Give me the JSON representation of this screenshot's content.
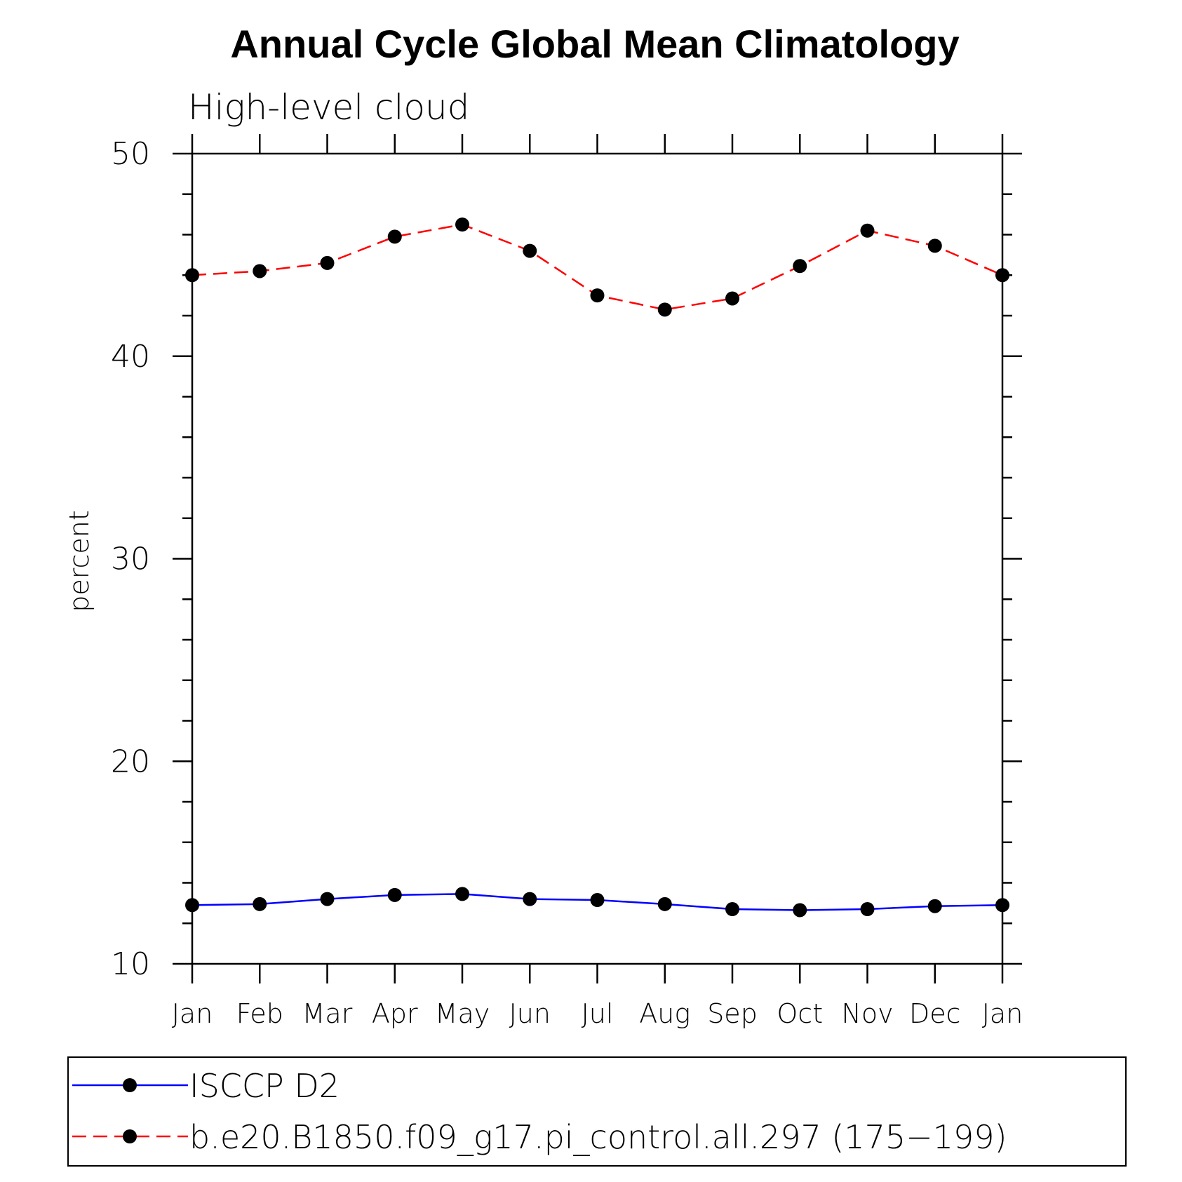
{
  "chart_data": {
    "type": "line",
    "title": "Annual Cycle Global Mean Climatology",
    "subtitle": "High-level cloud",
    "xlabel": "",
    "ylabel": "percent",
    "ylim": [
      10,
      50
    ],
    "yticks": [
      "10",
      "20",
      "30",
      "40",
      "50"
    ],
    "categories": [
      "Jan",
      "Feb",
      "Mar",
      "Apr",
      "May",
      "Jun",
      "Jul",
      "Aug",
      "Sep",
      "Oct",
      "Nov",
      "Dec",
      "Jan"
    ],
    "legend_position": "bottom",
    "series": [
      {
        "name": "ISCCP D2",
        "color": "#0000ff",
        "dash": "solid",
        "values": [
          12.9,
          12.95,
          13.2,
          13.4,
          13.45,
          13.2,
          13.15,
          12.95,
          12.7,
          12.65,
          12.7,
          12.85,
          12.9
        ]
      },
      {
        "name": "b.e20.B1850.f09_g17.pi_control.all.297 (175−199)",
        "color": "#ff0000",
        "dash": "dashed",
        "values": [
          44.0,
          44.2,
          44.6,
          45.9,
          46.5,
          45.2,
          43.0,
          42.3,
          42.85,
          44.45,
          46.2,
          45.45,
          44.0
        ]
      }
    ]
  }
}
